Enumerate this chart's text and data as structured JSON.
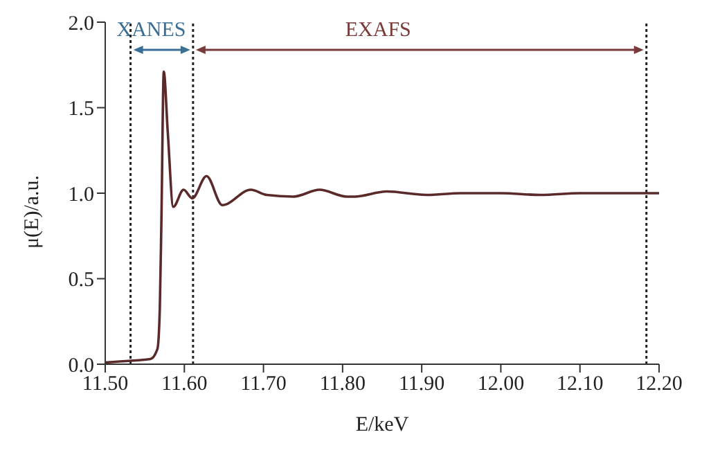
{
  "chart_data": {
    "type": "line",
    "xlabel": "E/keV",
    "ylabel": "μ(E)/a.u.",
    "x": [
      11.5,
      11.532,
      11.557,
      11.566,
      11.569,
      11.571,
      11.574,
      11.579,
      11.586,
      11.599,
      11.61,
      11.628,
      11.648,
      11.684,
      11.704,
      11.738,
      11.771,
      11.805,
      11.815,
      11.856,
      11.906,
      11.95,
      12.0,
      12.05,
      12.1,
      12.15,
      12.2
    ],
    "series": [
      {
        "color": "#5a2a2a",
        "values": [
          0.01,
          0.02,
          0.03,
          0.09,
          0.33,
          0.84,
          1.71,
          1.36,
          0.92,
          1.02,
          0.97,
          1.1,
          0.93,
          1.02,
          0.99,
          0.98,
          1.02,
          0.98,
          0.98,
          1.01,
          0.99,
          1.0,
          1.0,
          0.99,
          1.0,
          1.0,
          1.0
        ]
      }
    ],
    "xlim": [
      11.5,
      12.2
    ],
    "xticks": [
      {
        "value": 11.5,
        "label": "11.50"
      },
      {
        "value": 11.6,
        "label": "11.60"
      },
      {
        "value": 11.7,
        "label": "11.70"
      },
      {
        "value": 11.8,
        "label": "11.80"
      },
      {
        "value": 11.9,
        "label": "11.90"
      },
      {
        "value": 12.0,
        "label": "12.00"
      },
      {
        "value": 12.1,
        "label": "12.10"
      },
      {
        "value": 12.2,
        "label": "12.20"
      }
    ],
    "ylim": [
      0,
      2
    ],
    "yticks": [
      {
        "value": 0,
        "label": "0.0"
      },
      {
        "value": 0.5,
        "label": "0.5"
      },
      {
        "value": 1,
        "label": "1.0"
      },
      {
        "value": 1.5,
        "label": "1.5"
      },
      {
        "value": 2,
        "label": "2.0"
      }
    ],
    "ref_lines": [
      {
        "axis": "x",
        "value": 11.532,
        "line_style": "dotted",
        "color": "#222222"
      },
      {
        "axis": "x",
        "value": 11.611,
        "line_style": "dotted",
        "color": "#222222"
      },
      {
        "axis": "x",
        "value": 12.184,
        "line_style": "dotted",
        "color": "#222222"
      }
    ],
    "annotations": [
      "XANES",
      "EXAFS"
    ],
    "grid": false,
    "legend": false,
    "marker": "none",
    "line_style": "solid"
  }
}
